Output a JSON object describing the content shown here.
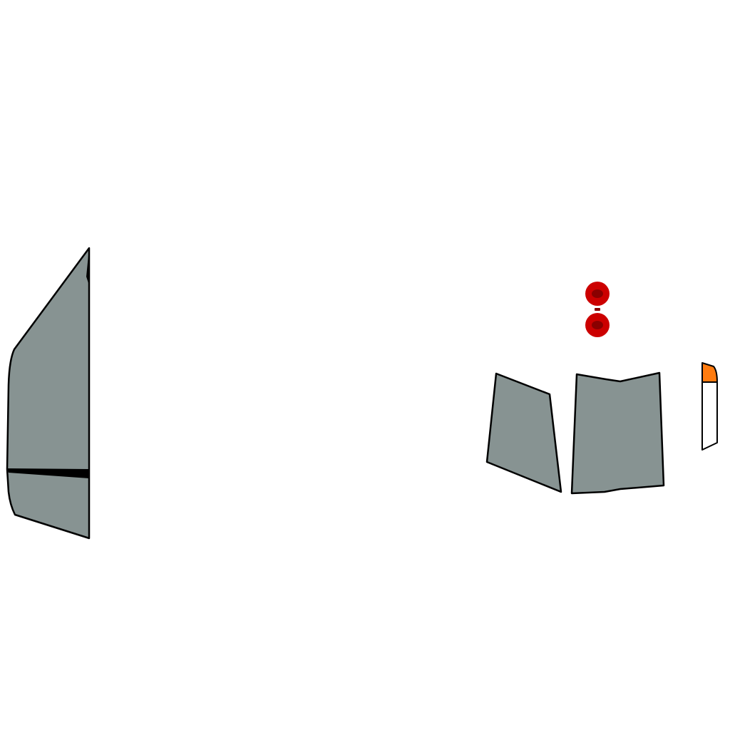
{
  "colors": {
    "background": "#ffffff",
    "panel_fill": "#879392",
    "outline": "#000000",
    "lamp_outer": "#cc0000",
    "lamp_inner": "#8a0000",
    "indicator_amber": "#ff7b0f",
    "indicator_white": "#ffffff"
  },
  "parts": [
    "left-door-panel",
    "door-seam",
    "rear-window-left",
    "rear-window-right",
    "upper-lamp",
    "lower-lamp",
    "side-marker-lamp"
  ]
}
